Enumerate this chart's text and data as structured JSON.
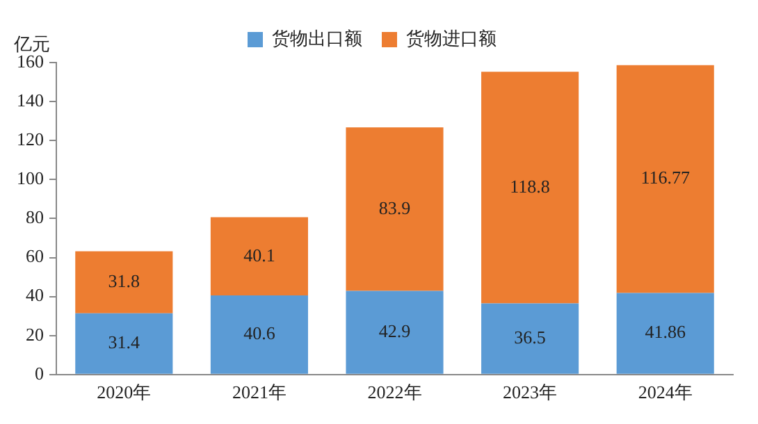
{
  "chart_data": {
    "type": "bar",
    "stacked": true,
    "ylabel": "亿元",
    "categories": [
      "2020年",
      "2021年",
      "2022年",
      "2023年",
      "2024年"
    ],
    "series": [
      {
        "name": "货物出口额",
        "color": "#5b9bd5",
        "values": [
          31.4,
          40.6,
          42.9,
          36.5,
          41.86
        ]
      },
      {
        "name": "货物进口额",
        "color": "#ed7d31",
        "values": [
          31.8,
          40.1,
          83.9,
          118.8,
          116.77
        ]
      }
    ],
    "ylim": [
      0,
      160
    ],
    "yticks": [
      0,
      20,
      40,
      60,
      80,
      100,
      120,
      140,
      160
    ],
    "grid": false,
    "legend": "top",
    "data_labels": true
  }
}
